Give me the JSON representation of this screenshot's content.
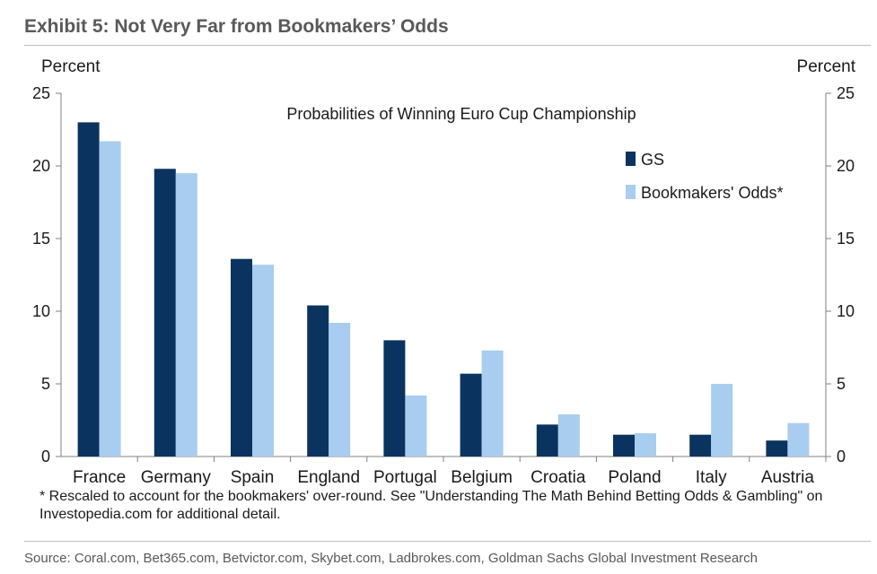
{
  "header": {
    "title": "Exhibit 5: Not Very Far from Bookmakers’ Odds"
  },
  "chart_data": {
    "type": "bar",
    "title": "Probabilities of Winning Euro Cup Championship",
    "ylabel_left": "Percent",
    "ylabel_right": "Percent",
    "ylim": [
      0,
      25
    ],
    "yticks": [
      0,
      5,
      10,
      15,
      20,
      25
    ],
    "categories": [
      "France",
      "Germany",
      "Spain",
      "England",
      "Portugal",
      "Belgium",
      "Croatia",
      "Poland",
      "Italy",
      "Austria"
    ],
    "series": [
      {
        "name": "GS",
        "color": "#0b3360",
        "values": [
          23.0,
          19.8,
          13.6,
          10.4,
          8.0,
          5.7,
          2.2,
          1.5,
          1.5,
          1.1
        ]
      },
      {
        "name": "Bookmakers' Odds*",
        "color": "#a8cdee",
        "values": [
          21.7,
          19.5,
          13.2,
          9.2,
          4.2,
          7.3,
          2.9,
          1.6,
          5.0,
          2.3
        ]
      }
    ],
    "legend_position": "top-right",
    "grid": false
  },
  "footnote": "* Rescaled to account for the bookmakers' over-round. See \"Understanding The Math Behind Betting Odds & Gambling\" on Investopedia.com for additional detail.",
  "source": "Source: Coral.com, Bet365.com, Betvictor.com, Skybet.com, Ladbrokes.com, Goldman Sachs Global Investment Research"
}
